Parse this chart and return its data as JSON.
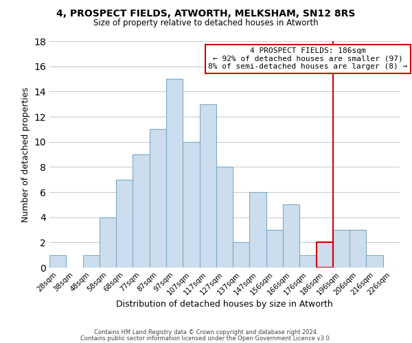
{
  "title": "4, PROSPECT FIELDS, ATWORTH, MELKSHAM, SN12 8RS",
  "subtitle": "Size of property relative to detached houses in Atworth",
  "xlabel": "Distribution of detached houses by size in Atworth",
  "ylabel": "Number of detached properties",
  "bar_color": "#ccdded",
  "bar_edge_color": "#7aaac8",
  "categories": [
    "28sqm",
    "38sqm",
    "48sqm",
    "58sqm",
    "68sqm",
    "77sqm",
    "87sqm",
    "97sqm",
    "107sqm",
    "117sqm",
    "127sqm",
    "137sqm",
    "147sqm",
    "156sqm",
    "166sqm",
    "176sqm",
    "186sqm",
    "196sqm",
    "206sqm",
    "216sqm",
    "226sqm"
  ],
  "values": [
    1,
    0,
    1,
    4,
    7,
    9,
    11,
    15,
    10,
    13,
    8,
    2,
    6,
    3,
    5,
    1,
    2,
    3,
    3,
    1,
    0
  ],
  "ylim": [
    0,
    18
  ],
  "yticks": [
    0,
    2,
    4,
    6,
    8,
    10,
    12,
    14,
    16,
    18
  ],
  "highlight_index": 16,
  "highlight_color": "#cc0000",
  "annotation_title": "4 PROSPECT FIELDS: 186sqm",
  "annotation_line1": "← 92% of detached houses are smaller (97)",
  "annotation_line2": "8% of semi-detached houses are larger (8) →",
  "footer_line1": "Contains HM Land Registry data © Crown copyright and database right 2024.",
  "footer_line2": "Contains public sector information licensed under the Open Government Licence v3.0.",
  "background_color": "#ffffff",
  "grid_color": "#cccccc"
}
